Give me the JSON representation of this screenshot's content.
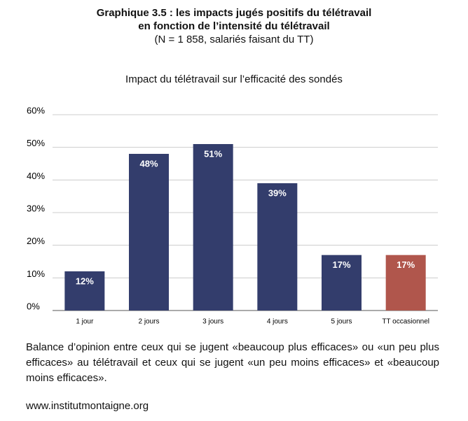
{
  "chart_data": {
    "type": "bar",
    "title": "Graphique 3.5 : les impacts jugés positifs du télétravail",
    "title_line2": "en fonction de l’intensité du télétravail",
    "subtitle": "(N = 1 858, salariés faisant du TT)",
    "chart_title": "Impact du télétravail sur l’efficacité des sondés",
    "categories": [
      "1 jour",
      "2 jours",
      "3 jours",
      "4 jours",
      "5 jours",
      "TT occasionnel"
    ],
    "values": [
      12,
      48,
      51,
      39,
      17,
      17
    ],
    "value_labels": [
      "12%",
      "48%",
      "51%",
      "39%",
      "17%",
      "17%"
    ],
    "colors": [
      "#333d6c",
      "#333d6c",
      "#333d6c",
      "#333d6c",
      "#333d6c",
      "#b0564c"
    ],
    "ylim": [
      0,
      60
    ],
    "yticks": [
      {
        "value": 0,
        "label": "0%"
      },
      {
        "value": 10,
        "label": "10%"
      },
      {
        "value": 20,
        "label": "20%"
      },
      {
        "value": 30,
        "label": "30%"
      },
      {
        "value": 40,
        "label": "40%"
      },
      {
        "value": 50,
        "label": "50%"
      },
      {
        "value": 60,
        "label": "60%"
      }
    ],
    "grid": true,
    "note": "Balance d’opinion entre ceux qui se jugent «beaucoup plus efficaces» ou «un peu plus efficaces» au télétravail et ceux qui se jugent «un peu moins efficaces» et «beaucoup moins efficaces».",
    "source": "www.institutmontaigne.org"
  }
}
